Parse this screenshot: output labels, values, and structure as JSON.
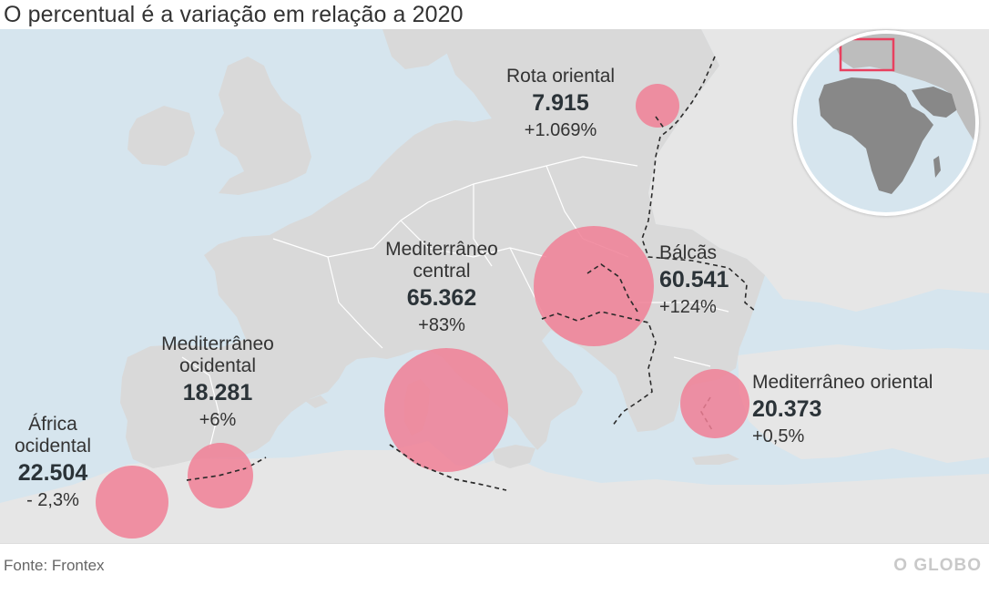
{
  "subtitle": "O percentual é a variação em relação a 2020",
  "source": "Fonte: Frontex",
  "logo": "O GLOBO",
  "colors": {
    "sea": "#d6e5ee",
    "land": "#d9d9d9",
    "land_far": "#e6e6e6",
    "bubble": "#f07f95",
    "inset_highlight": "#e8405f"
  },
  "routes": [
    {
      "key": "rota_oriental",
      "name": "Rota oriental",
      "value": "7.915",
      "change": "+1.069%"
    },
    {
      "key": "balcas",
      "name": "Bálcãs",
      "value": "60.541",
      "change": "+124%"
    },
    {
      "key": "med_central",
      "name_line1": "Mediterrâneo",
      "name_line2": "central",
      "value": "65.362",
      "change": "+83%"
    },
    {
      "key": "med_ocidental",
      "name_line1": "Mediterrâneo",
      "name_line2": "ocidental",
      "value": "18.281",
      "change": "+6%"
    },
    {
      "key": "med_oriental",
      "name": "Mediterrâneo oriental",
      "value": "20.373",
      "change": "+0,5%"
    },
    {
      "key": "africa_ocidental",
      "name_line1": "África",
      "name_line2": "ocidental",
      "value": "22.504",
      "change": "- 2,3%"
    }
  ]
}
